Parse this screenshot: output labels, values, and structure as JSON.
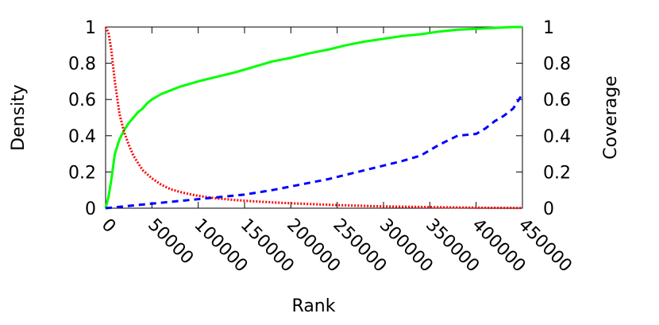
{
  "chart_data": {
    "type": "line",
    "xlabel": "Rank",
    "ylabel_left": "Density",
    "ylabel_right": "Coverage",
    "xlim": [
      0,
      450000
    ],
    "ylim_left": [
      0,
      1
    ],
    "ylim_right": [
      0,
      1
    ],
    "x_ticks": [
      {
        "value": 0,
        "label": "0"
      },
      {
        "value": 50000,
        "label": "50000"
      },
      {
        "value": 100000,
        "label": "100000"
      },
      {
        "value": 150000,
        "label": "150000"
      },
      {
        "value": 200000,
        "label": "200000"
      },
      {
        "value": 250000,
        "label": "250000"
      },
      {
        "value": 300000,
        "label": "300000"
      },
      {
        "value": 350000,
        "label": "350000"
      },
      {
        "value": 400000,
        "label": "400000"
      },
      {
        "value": 450000,
        "label": "450000"
      }
    ],
    "y_ticks_left": [
      {
        "value": 0,
        "label": "0"
      },
      {
        "value": 0.2,
        "label": "0.2"
      },
      {
        "value": 0.4,
        "label": "0.4"
      },
      {
        "value": 0.6,
        "label": "0.6"
      },
      {
        "value": 0.8,
        "label": "0.8"
      },
      {
        "value": 1,
        "label": "1"
      }
    ],
    "y_ticks_right": [
      {
        "value": 0,
        "label": "0"
      },
      {
        "value": 0.2,
        "label": "0.2"
      },
      {
        "value": 0.4,
        "label": "0.4"
      },
      {
        "value": 0.6,
        "label": "0.6"
      },
      {
        "value": 0.8,
        "label": "0.8"
      },
      {
        "value": 1,
        "label": "1"
      }
    ],
    "grid": false,
    "legend": "none",
    "series": [
      {
        "color": "#00ff00",
        "style": "solid",
        "axis": "right",
        "x": [
          0,
          3000,
          6000,
          10000,
          15000,
          20000,
          25000,
          30000,
          35000,
          40000,
          45000,
          50000,
          60000,
          70000,
          80000,
          90000,
          100000,
          120000,
          140000,
          160000,
          180000,
          200000,
          220000,
          240000,
          260000,
          280000,
          300000,
          320000,
          340000,
          360000,
          380000,
          400000,
          420000,
          440000,
          450000
        ],
        "y": [
          0,
          0.06,
          0.15,
          0.3,
          0.38,
          0.43,
          0.47,
          0.5,
          0.53,
          0.55,
          0.58,
          0.6,
          0.63,
          0.65,
          0.67,
          0.685,
          0.7,
          0.725,
          0.75,
          0.78,
          0.81,
          0.83,
          0.855,
          0.875,
          0.9,
          0.92,
          0.935,
          0.95,
          0.96,
          0.975,
          0.985,
          0.99,
          0.995,
          1.0,
          1.0
        ]
      },
      {
        "color": "#ff0000",
        "style": "dotted",
        "axis": "left",
        "x": [
          0,
          3000,
          6000,
          10000,
          15000,
          20000,
          25000,
          30000,
          35000,
          40000,
          50000,
          60000,
          70000,
          80000,
          90000,
          100000,
          120000,
          140000,
          160000,
          180000,
          200000,
          250000,
          300000,
          350000,
          400000,
          450000
        ],
        "y": [
          1.0,
          0.97,
          0.88,
          0.7,
          0.52,
          0.42,
          0.35,
          0.29,
          0.25,
          0.21,
          0.165,
          0.13,
          0.105,
          0.09,
          0.078,
          0.068,
          0.054,
          0.045,
          0.038,
          0.032,
          0.027,
          0.017,
          0.01,
          0.006,
          0.003,
          0.001
        ]
      },
      {
        "color": "#0000ff",
        "style": "dashed",
        "axis": "left",
        "x": [
          0,
          50000,
          100000,
          130000,
          150000,
          180000,
          200000,
          220000,
          240000,
          260000,
          280000,
          300000,
          320000,
          340000,
          350000,
          360000,
          380000,
          400000,
          410000,
          420000,
          430000,
          440000,
          450000
        ],
        "y": [
          0,
          0.025,
          0.05,
          0.065,
          0.075,
          0.1,
          0.12,
          0.14,
          0.16,
          0.185,
          0.21,
          0.235,
          0.26,
          0.29,
          0.32,
          0.35,
          0.4,
          0.41,
          0.44,
          0.48,
          0.51,
          0.55,
          0.63
        ]
      }
    ]
  }
}
